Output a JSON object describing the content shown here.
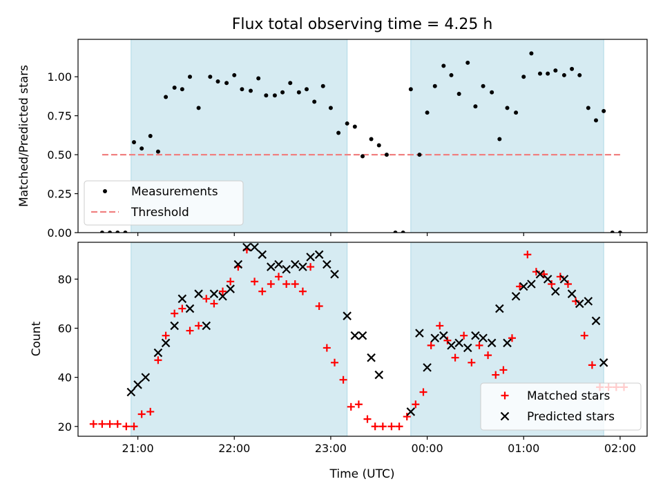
{
  "figure": {
    "title": "Flux total observing time = 4.25 h",
    "xlabel": "Time (UTC)",
    "xtick_labels": [
      "21:00",
      "22:00",
      "23:00",
      "00:00",
      "01:00",
      "02:00"
    ]
  },
  "colors": {
    "shade": "#add8e6",
    "measurement": "#000000",
    "threshold": "#f08080",
    "matched": "#ff0000",
    "predicted": "#000000"
  },
  "chart_data": [
    {
      "type": "scatter",
      "ylabel": "Matched/Predicted stars",
      "xlim": [
        20.38,
        26.28
      ],
      "ylim": [
        0,
        1.24
      ],
      "yticks": [
        0.0,
        0.25,
        0.5,
        0.75,
        1.0
      ],
      "ytick_labels": [
        "0.00",
        "0.25",
        "0.50",
        "0.75",
        "1.00"
      ],
      "shaded_spans": [
        [
          20.93,
          23.17
        ],
        [
          23.83,
          25.83
        ]
      ],
      "threshold": {
        "value": 0.5,
        "x_range": [
          20.63,
          26.0
        ]
      },
      "legend": {
        "position": "lower-left",
        "entries": [
          "Measurements",
          "Threshold"
        ]
      },
      "series": [
        {
          "name": "Measurements",
          "x": [
            20.63,
            20.71,
            20.79,
            20.87,
            20.96,
            21.04,
            21.13,
            21.21,
            21.29,
            21.38,
            21.46,
            21.54,
            21.63,
            21.75,
            21.83,
            21.92,
            22.0,
            22.08,
            22.17,
            22.25,
            22.33,
            22.42,
            22.5,
            22.58,
            22.67,
            22.75,
            22.83,
            22.92,
            23.0,
            23.08,
            23.17,
            23.25,
            23.33,
            23.42,
            23.5,
            23.58,
            23.67,
            23.75,
            23.83,
            23.92,
            24.0,
            24.08,
            24.17,
            24.25,
            24.33,
            24.42,
            24.5,
            24.58,
            24.67,
            24.75,
            24.83,
            24.92,
            25.0,
            25.08,
            25.17,
            25.25,
            25.33,
            25.42,
            25.5,
            25.58,
            25.67,
            25.75,
            25.83,
            25.92,
            26.0
          ],
          "y": [
            0.0,
            0.0,
            0.0,
            0.0,
            0.58,
            0.54,
            0.62,
            0.52,
            0.87,
            0.93,
            0.92,
            1.0,
            0.8,
            1.0,
            0.97,
            0.96,
            1.01,
            0.92,
            0.91,
            0.99,
            0.88,
            0.88,
            0.9,
            0.96,
            0.9,
            0.92,
            0.84,
            0.94,
            0.8,
            0.64,
            0.7,
            0.68,
            0.49,
            0.6,
            0.56,
            0.5,
            0.0,
            0.0,
            0.92,
            0.5,
            0.77,
            0.94,
            1.07,
            1.01,
            0.89,
            1.09,
            0.81,
            0.94,
            0.9,
            0.6,
            0.8,
            0.77,
            1.0,
            1.15,
            1.02,
            1.02,
            1.04,
            1.01,
            1.05,
            1.01,
            0.8,
            0.72,
            0.78,
            0.0,
            0.0
          ]
        }
      ]
    },
    {
      "type": "scatter",
      "ylabel": "Count",
      "xlim": [
        20.38,
        26.28
      ],
      "ylim": [
        16,
        95
      ],
      "yticks": [
        20,
        40,
        60,
        80
      ],
      "ytick_labels": [
        "20",
        "40",
        "60",
        "80"
      ],
      "shaded_spans": [
        [
          20.93,
          23.17
        ],
        [
          23.83,
          25.83
        ]
      ],
      "legend": {
        "position": "lower-right",
        "entries": [
          "Matched stars",
          "Predicted stars"
        ]
      },
      "series": [
        {
          "name": "Matched stars",
          "x": [
            20.54,
            20.63,
            20.71,
            20.79,
            20.88,
            20.96,
            21.04,
            21.13,
            21.21,
            21.29,
            21.38,
            21.46,
            21.54,
            21.63,
            21.71,
            21.79,
            21.88,
            21.96,
            22.04,
            22.13,
            22.21,
            22.29,
            22.38,
            22.46,
            22.54,
            22.63,
            22.71,
            22.79,
            22.88,
            22.96,
            23.04,
            23.13,
            23.21,
            23.29,
            23.38,
            23.46,
            23.54,
            23.63,
            23.71,
            23.79,
            23.88,
            23.96,
            24.04,
            24.13,
            24.21,
            24.29,
            24.38,
            24.46,
            24.54,
            24.63,
            24.71,
            24.79,
            24.88,
            24.96,
            25.04,
            25.13,
            25.21,
            25.29,
            25.38,
            25.46,
            25.54,
            25.63,
            25.71,
            25.79,
            25.88,
            25.96,
            26.04
          ],
          "y": [
            21,
            21,
            21,
            21,
            20,
            20,
            25,
            26,
            47,
            57,
            66,
            68,
            59,
            61,
            72,
            70,
            75,
            79,
            85,
            92,
            79,
            75,
            78,
            81,
            78,
            78,
            75,
            85,
            69,
            52,
            46,
            39,
            28,
            29,
            23,
            20,
            20,
            20,
            20,
            24,
            29,
            34,
            53,
            61,
            55,
            48,
            57,
            46,
            53,
            49,
            41,
            43,
            56,
            77,
            90,
            83,
            82,
            78,
            81,
            78,
            71,
            57,
            45,
            36,
            36,
            36,
            36
          ]
        },
        {
          "name": "Predicted stars",
          "x": [
            20.93,
            21.0,
            21.08,
            21.21,
            21.29,
            21.38,
            21.46,
            21.54,
            21.63,
            21.71,
            21.79,
            21.88,
            21.96,
            22.04,
            22.13,
            22.21,
            22.29,
            22.38,
            22.46,
            22.54,
            22.63,
            22.71,
            22.79,
            22.88,
            22.96,
            23.04,
            23.17,
            23.25,
            23.33,
            23.42,
            23.5,
            23.83,
            23.92,
            24.0,
            24.08,
            24.17,
            24.25,
            24.33,
            24.42,
            24.5,
            24.58,
            24.67,
            24.75,
            24.83,
            24.92,
            25.0,
            25.08,
            25.17,
            25.25,
            25.33,
            25.42,
            25.5,
            25.58,
            25.67,
            25.75,
            25.83
          ],
          "y": [
            34,
            37,
            40,
            50,
            54,
            61,
            72,
            68,
            74,
            61,
            74,
            73,
            76,
            86,
            93,
            93,
            90,
            85,
            86,
            84,
            86,
            85,
            89,
            90,
            86,
            82,
            65,
            57,
            57,
            48,
            41,
            26,
            58,
            44,
            56,
            57,
            53,
            54,
            52,
            57,
            56,
            54,
            68,
            54,
            73,
            77,
            78,
            82,
            80,
            75,
            80,
            74,
            70,
            71,
            63,
            46
          ]
        }
      ]
    }
  ]
}
